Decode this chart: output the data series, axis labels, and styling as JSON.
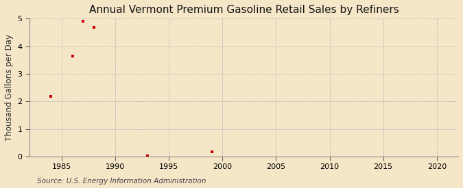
{
  "title": "Annual Vermont Premium Gasoline Retail Sales by Refiners",
  "ylabel": "Thousand Gallons per Day",
  "source": "Source: U.S. Energy Information Administration",
  "background_color": "#f5e6c8",
  "marker_color": "#cc0000",
  "grid_color": "#bbbbbb",
  "x_data": [
    1984,
    1986,
    1987,
    1988,
    1993,
    1999
  ],
  "y_data": [
    2.18,
    3.65,
    4.9,
    4.68,
    0.02,
    0.17
  ],
  "xlim": [
    1982,
    2022
  ],
  "ylim": [
    0,
    5
  ],
  "xticks": [
    1985,
    1990,
    1995,
    2000,
    2005,
    2010,
    2015,
    2020
  ],
  "yticks": [
    0,
    1,
    2,
    3,
    4,
    5
  ],
  "title_fontsize": 11,
  "label_fontsize": 8.5,
  "tick_fontsize": 8,
  "source_fontsize": 7.5
}
